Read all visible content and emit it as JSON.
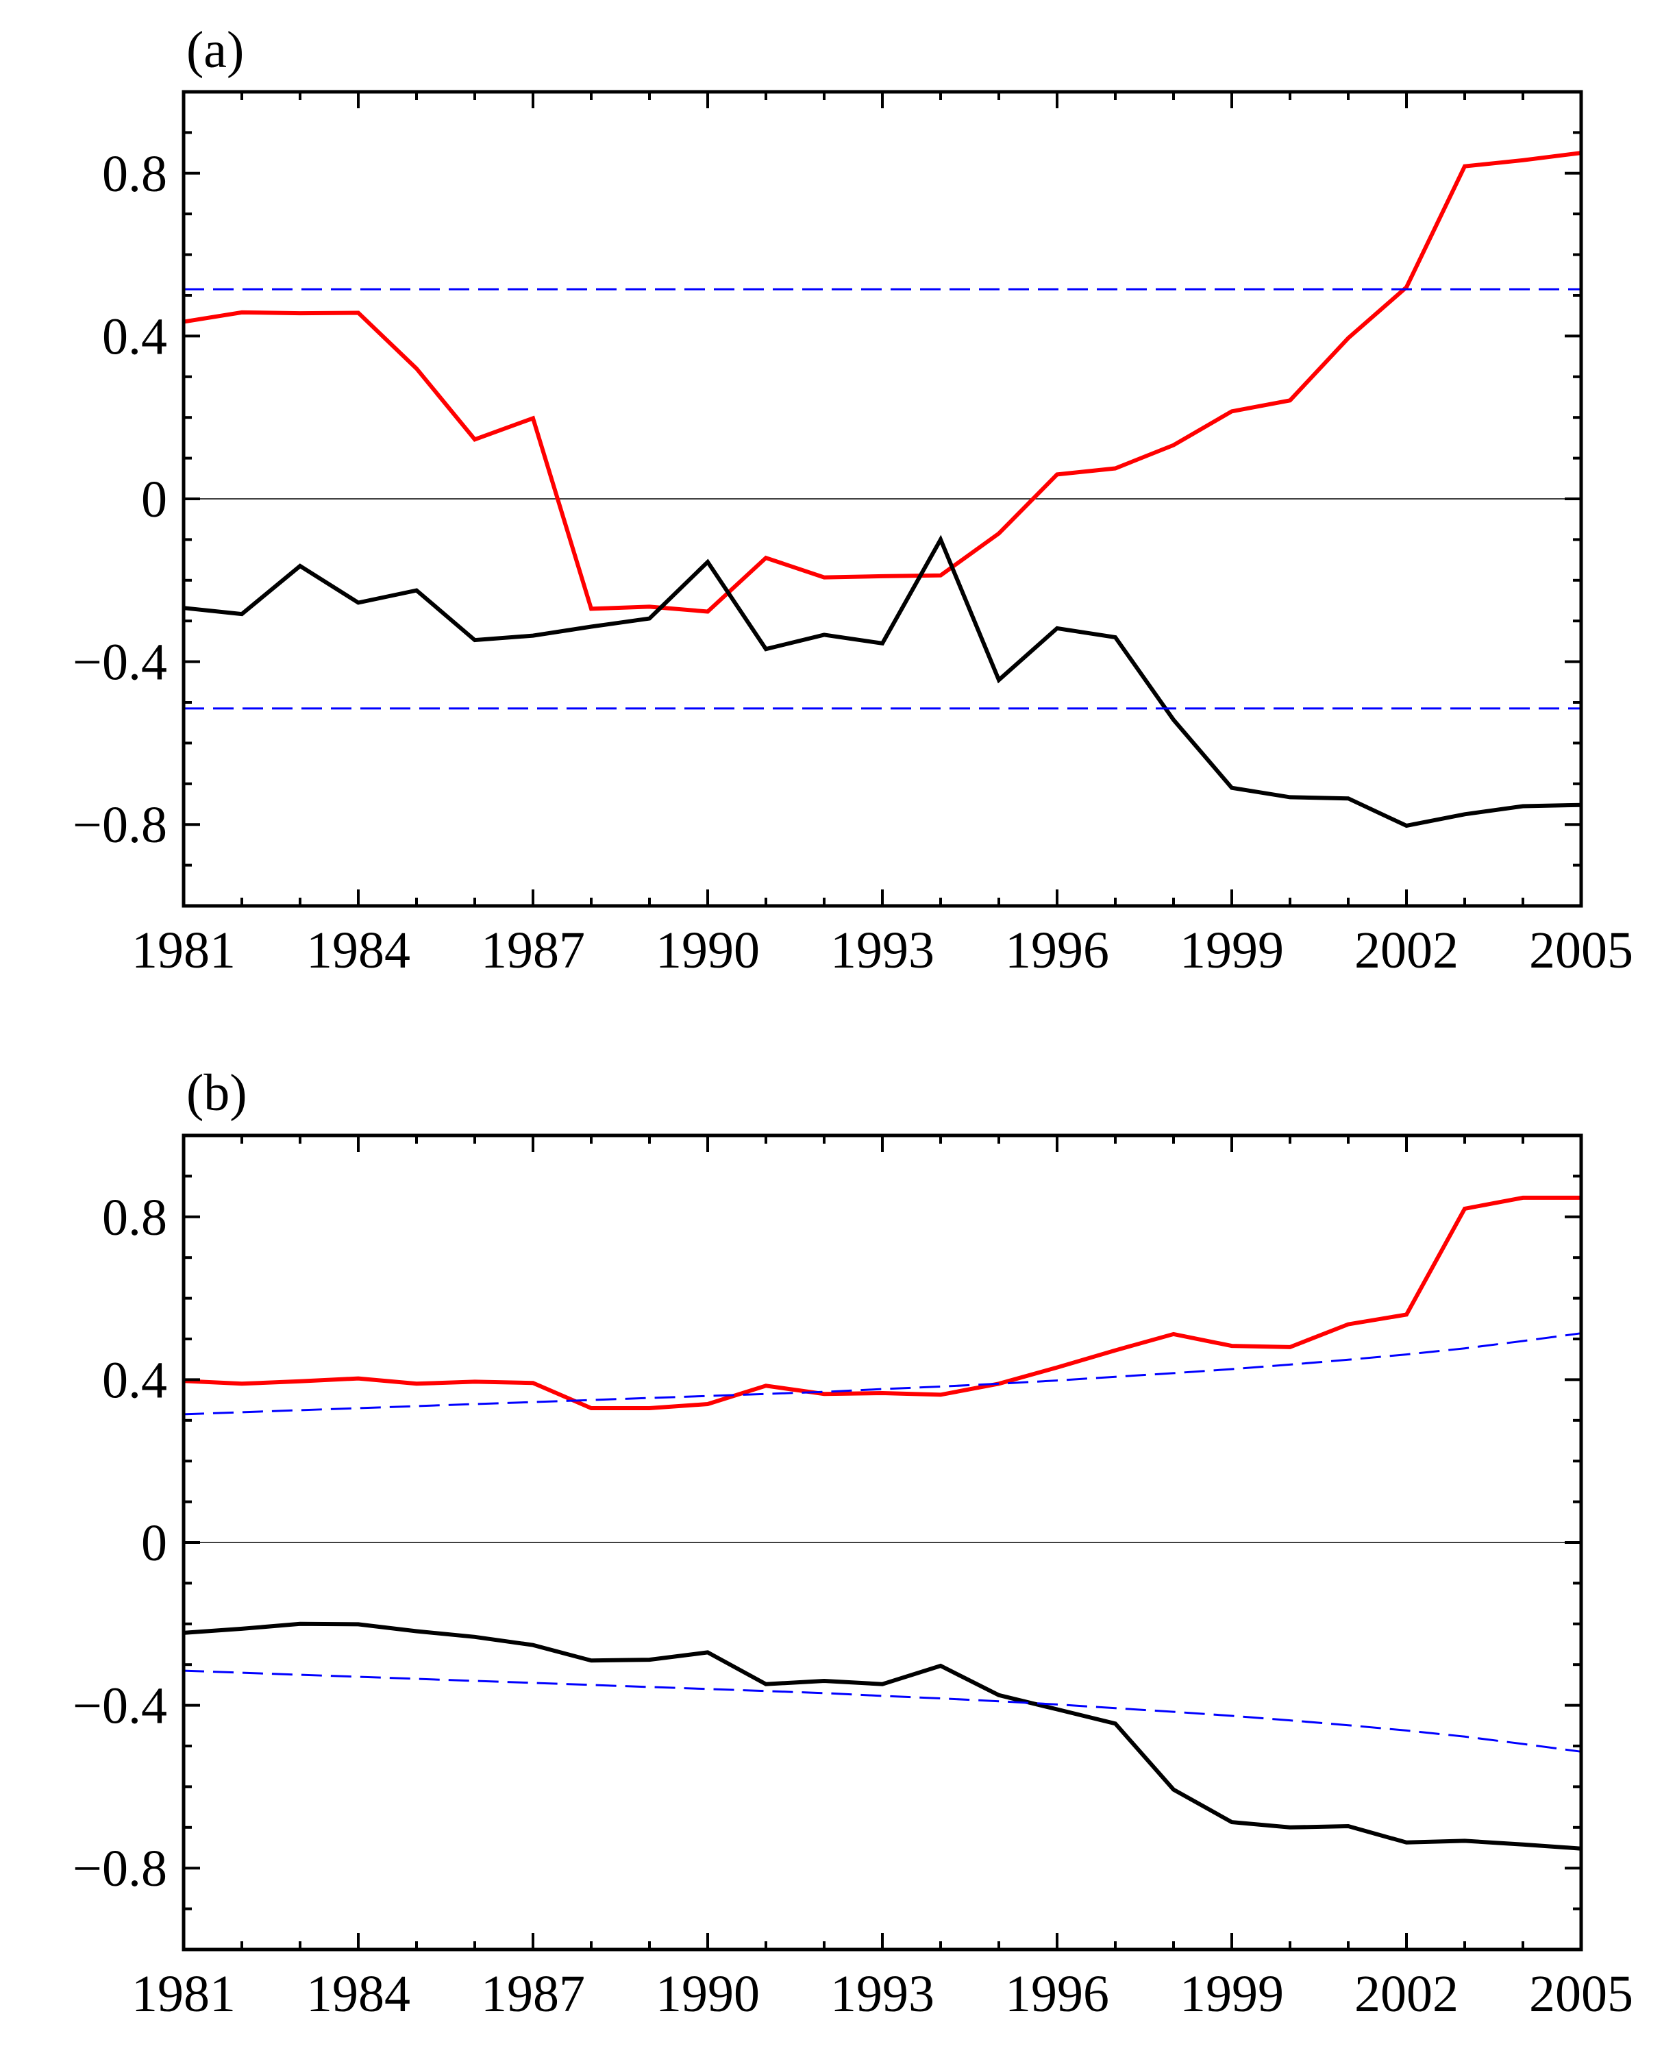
{
  "chart_data": [
    {
      "type": "line",
      "panel_label": "(a)",
      "xlabel": "",
      "ylabel": "",
      "xlim": [
        1981,
        2005
      ],
      "ylim": [
        -1.0,
        1.0
      ],
      "xticks": [
        1981,
        1984,
        1987,
        1990,
        1993,
        1996,
        1999,
        2002,
        2005
      ],
      "xtick_labels": [
        "1981",
        "1984",
        "1987",
        "1990",
        "1993",
        "1996",
        "1999",
        "2002",
        "2005"
      ],
      "yticks": [
        0.8,
        0.4,
        0,
        -0.4,
        -0.8
      ],
      "ytick_labels": [
        "0.8",
        "0.4",
        "0",
        "−0.4",
        "−0.8"
      ],
      "x": [
        1981,
        1982,
        1983,
        1984,
        1985,
        1986,
        1987,
        1988,
        1989,
        1990,
        1991,
        1992,
        1993,
        1994,
        1995,
        1996,
        1997,
        1998,
        1999,
        2000,
        2001,
        2002,
        2003,
        2004,
        2005
      ],
      "series": [
        {
          "name": "red",
          "color": "#ff0000",
          "style": "solid",
          "values": [
            0.435,
            0.458,
            0.456,
            0.457,
            0.32,
            0.146,
            0.198,
            -0.27,
            -0.265,
            -0.277,
            -0.145,
            -0.193,
            -0.19,
            -0.188,
            -0.085,
            0.06,
            0.075,
            0.132,
            0.215,
            0.242,
            0.395,
            0.52,
            0.817,
            0.832,
            0.85
          ]
        },
        {
          "name": "black",
          "color": "#000000",
          "style": "solid",
          "values": [
            -0.268,
            -0.283,
            -0.165,
            -0.255,
            -0.225,
            -0.347,
            -0.336,
            -0.314,
            -0.294,
            -0.155,
            -0.369,
            -0.334,
            -0.355,
            -0.1,
            -0.445,
            -0.318,
            -0.34,
            -0.543,
            -0.71,
            -0.733,
            -0.736,
            -0.803,
            -0.775,
            -0.755,
            -0.752
          ]
        },
        {
          "name": "upper threshold",
          "color": "#0000ff",
          "style": "dashed",
          "values": [
            0.515,
            0.515,
            0.515,
            0.515,
            0.515,
            0.515,
            0.515,
            0.515,
            0.515,
            0.515,
            0.515,
            0.515,
            0.515,
            0.515,
            0.515,
            0.515,
            0.515,
            0.515,
            0.515,
            0.515,
            0.515,
            0.515,
            0.515,
            0.515,
            0.515
          ]
        },
        {
          "name": "lower threshold",
          "color": "#0000ff",
          "style": "dashed",
          "values": [
            -0.515,
            -0.515,
            -0.515,
            -0.515,
            -0.515,
            -0.515,
            -0.515,
            -0.515,
            -0.515,
            -0.515,
            -0.515,
            -0.515,
            -0.515,
            -0.515,
            -0.515,
            -0.515,
            -0.515,
            -0.515,
            -0.515,
            -0.515,
            -0.515,
            -0.515,
            -0.515,
            -0.515,
            -0.515
          ]
        }
      ]
    },
    {
      "type": "line",
      "panel_label": "(b)",
      "xlabel": "",
      "ylabel": "",
      "xlim": [
        1981,
        2005
      ],
      "ylim": [
        -1.0,
        1.0
      ],
      "xticks": [
        1981,
        1984,
        1987,
        1990,
        1993,
        1996,
        1999,
        2002,
        2005
      ],
      "xtick_labels": [
        "1981",
        "1984",
        "1987",
        "1990",
        "1993",
        "1996",
        "1999",
        "2002",
        "2005"
      ],
      "yticks": [
        0.8,
        0.4,
        0,
        -0.4,
        -0.8
      ],
      "ytick_labels": [
        "0.8",
        "0.4",
        "0",
        "−0.4",
        "−0.8"
      ],
      "x": [
        1981,
        1982,
        1983,
        1984,
        1985,
        1986,
        1987,
        1988,
        1989,
        1990,
        1991,
        1992,
        1993,
        1994,
        1995,
        1996,
        1997,
        1998,
        1999,
        2000,
        2001,
        2002,
        2003,
        2004,
        2005
      ],
      "series": [
        {
          "name": "red",
          "color": "#ff0000",
          "style": "solid",
          "values": [
            0.397,
            0.39,
            0.396,
            0.403,
            0.39,
            0.395,
            0.392,
            0.33,
            0.33,
            0.34,
            0.385,
            0.365,
            0.367,
            0.363,
            0.39,
            0.43,
            0.472,
            0.512,
            0.483,
            0.48,
            0.536,
            0.56,
            0.82,
            0.847,
            0.847
          ]
        },
        {
          "name": "black",
          "color": "#000000",
          "style": "solid",
          "values": [
            -0.222,
            -0.212,
            -0.2,
            -0.201,
            -0.218,
            -0.232,
            -0.252,
            -0.29,
            -0.288,
            -0.27,
            -0.348,
            -0.34,
            -0.348,
            -0.303,
            -0.375,
            -0.41,
            -0.445,
            -0.607,
            -0.687,
            -0.7,
            -0.697,
            -0.737,
            -0.733,
            -0.742,
            -0.752
          ]
        },
        {
          "name": "upper threshold",
          "color": "#0000ff",
          "style": "dashed",
          "values": [
            0.315,
            0.32,
            0.325,
            0.33,
            0.335,
            0.34,
            0.345,
            0.35,
            0.355,
            0.36,
            0.365,
            0.37,
            0.377,
            0.383,
            0.39,
            0.398,
            0.407,
            0.416,
            0.426,
            0.437,
            0.449,
            0.462,
            0.477,
            0.495,
            0.514
          ]
        },
        {
          "name": "lower threshold",
          "color": "#0000ff",
          "style": "dashed",
          "values": [
            -0.315,
            -0.32,
            -0.325,
            -0.33,
            -0.335,
            -0.34,
            -0.345,
            -0.35,
            -0.355,
            -0.36,
            -0.365,
            -0.37,
            -0.377,
            -0.383,
            -0.39,
            -0.398,
            -0.407,
            -0.416,
            -0.426,
            -0.437,
            -0.449,
            -0.462,
            -0.477,
            -0.495,
            -0.514
          ]
        }
      ]
    }
  ]
}
